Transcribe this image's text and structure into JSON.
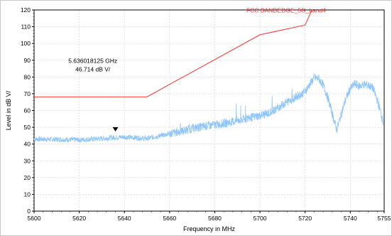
{
  "chart_data": {
    "type": "line",
    "xlabel": "Frequency in MHz",
    "ylabel": "Level in dB   V/",
    "xlim": [
      5600,
      5755
    ],
    "ylim": [
      0,
      120
    ],
    "x_ticks": [
      5600,
      5620,
      5640,
      5660,
      5680,
      5700,
      5720,
      5740,
      5755
    ],
    "y_ticks": [
      0,
      10,
      20,
      30,
      40,
      50,
      60,
      70,
      80,
      90,
      100,
      110,
      120
    ],
    "grid": true,
    "limit_line": {
      "name": "FCC BANDEDGE_5G_band4",
      "color": "#ff3030",
      "points": [
        [
          5600,
          68.2
        ],
        [
          5650,
          68.2
        ],
        [
          5700,
          105.2
        ],
        [
          5720,
          111
        ],
        [
          5723,
          120
        ]
      ]
    },
    "series": [
      {
        "color": "#8ec5ff",
        "points": [
          [
            5600,
            43
          ],
          [
            5610,
            42.8
          ],
          [
            5620,
            42.5
          ],
          [
            5630,
            43.3
          ],
          [
            5636,
            44
          ],
          [
            5640,
            44.2
          ],
          [
            5645,
            43.8
          ],
          [
            5650,
            43.3
          ],
          [
            5655,
            44.8
          ],
          [
            5660,
            46.2
          ],
          [
            5665,
            47.5
          ],
          [
            5670,
            49.3
          ],
          [
            5675,
            50.5
          ],
          [
            5680,
            51.5
          ],
          [
            5685,
            52.5
          ],
          [
            5690,
            54
          ],
          [
            5695,
            55.5
          ],
          [
            5700,
            57
          ],
          [
            5705,
            59
          ],
          [
            5710,
            63.5
          ],
          [
            5715,
            67.5
          ],
          [
            5718,
            69.5
          ],
          [
            5720,
            71.5
          ],
          [
            5722,
            75.5
          ],
          [
            5724,
            79.5
          ],
          [
            5726,
            79
          ],
          [
            5728,
            75
          ],
          [
            5730,
            68
          ],
          [
            5732,
            58
          ],
          [
            5734,
            48.5
          ],
          [
            5736,
            58
          ],
          [
            5738,
            67
          ],
          [
            5740,
            73
          ],
          [
            5742,
            76
          ],
          [
            5744,
            74.5
          ],
          [
            5746,
            75.5
          ],
          [
            5748,
            75
          ],
          [
            5750,
            73.5
          ],
          [
            5752,
            66
          ],
          [
            5755,
            51
          ]
        ]
      }
    ],
    "marker": {
      "freq_text": "5.636018125 GHz",
      "level_text": "46.714 dB    V/",
      "x": 5636.018125,
      "y": 46.714
    }
  }
}
